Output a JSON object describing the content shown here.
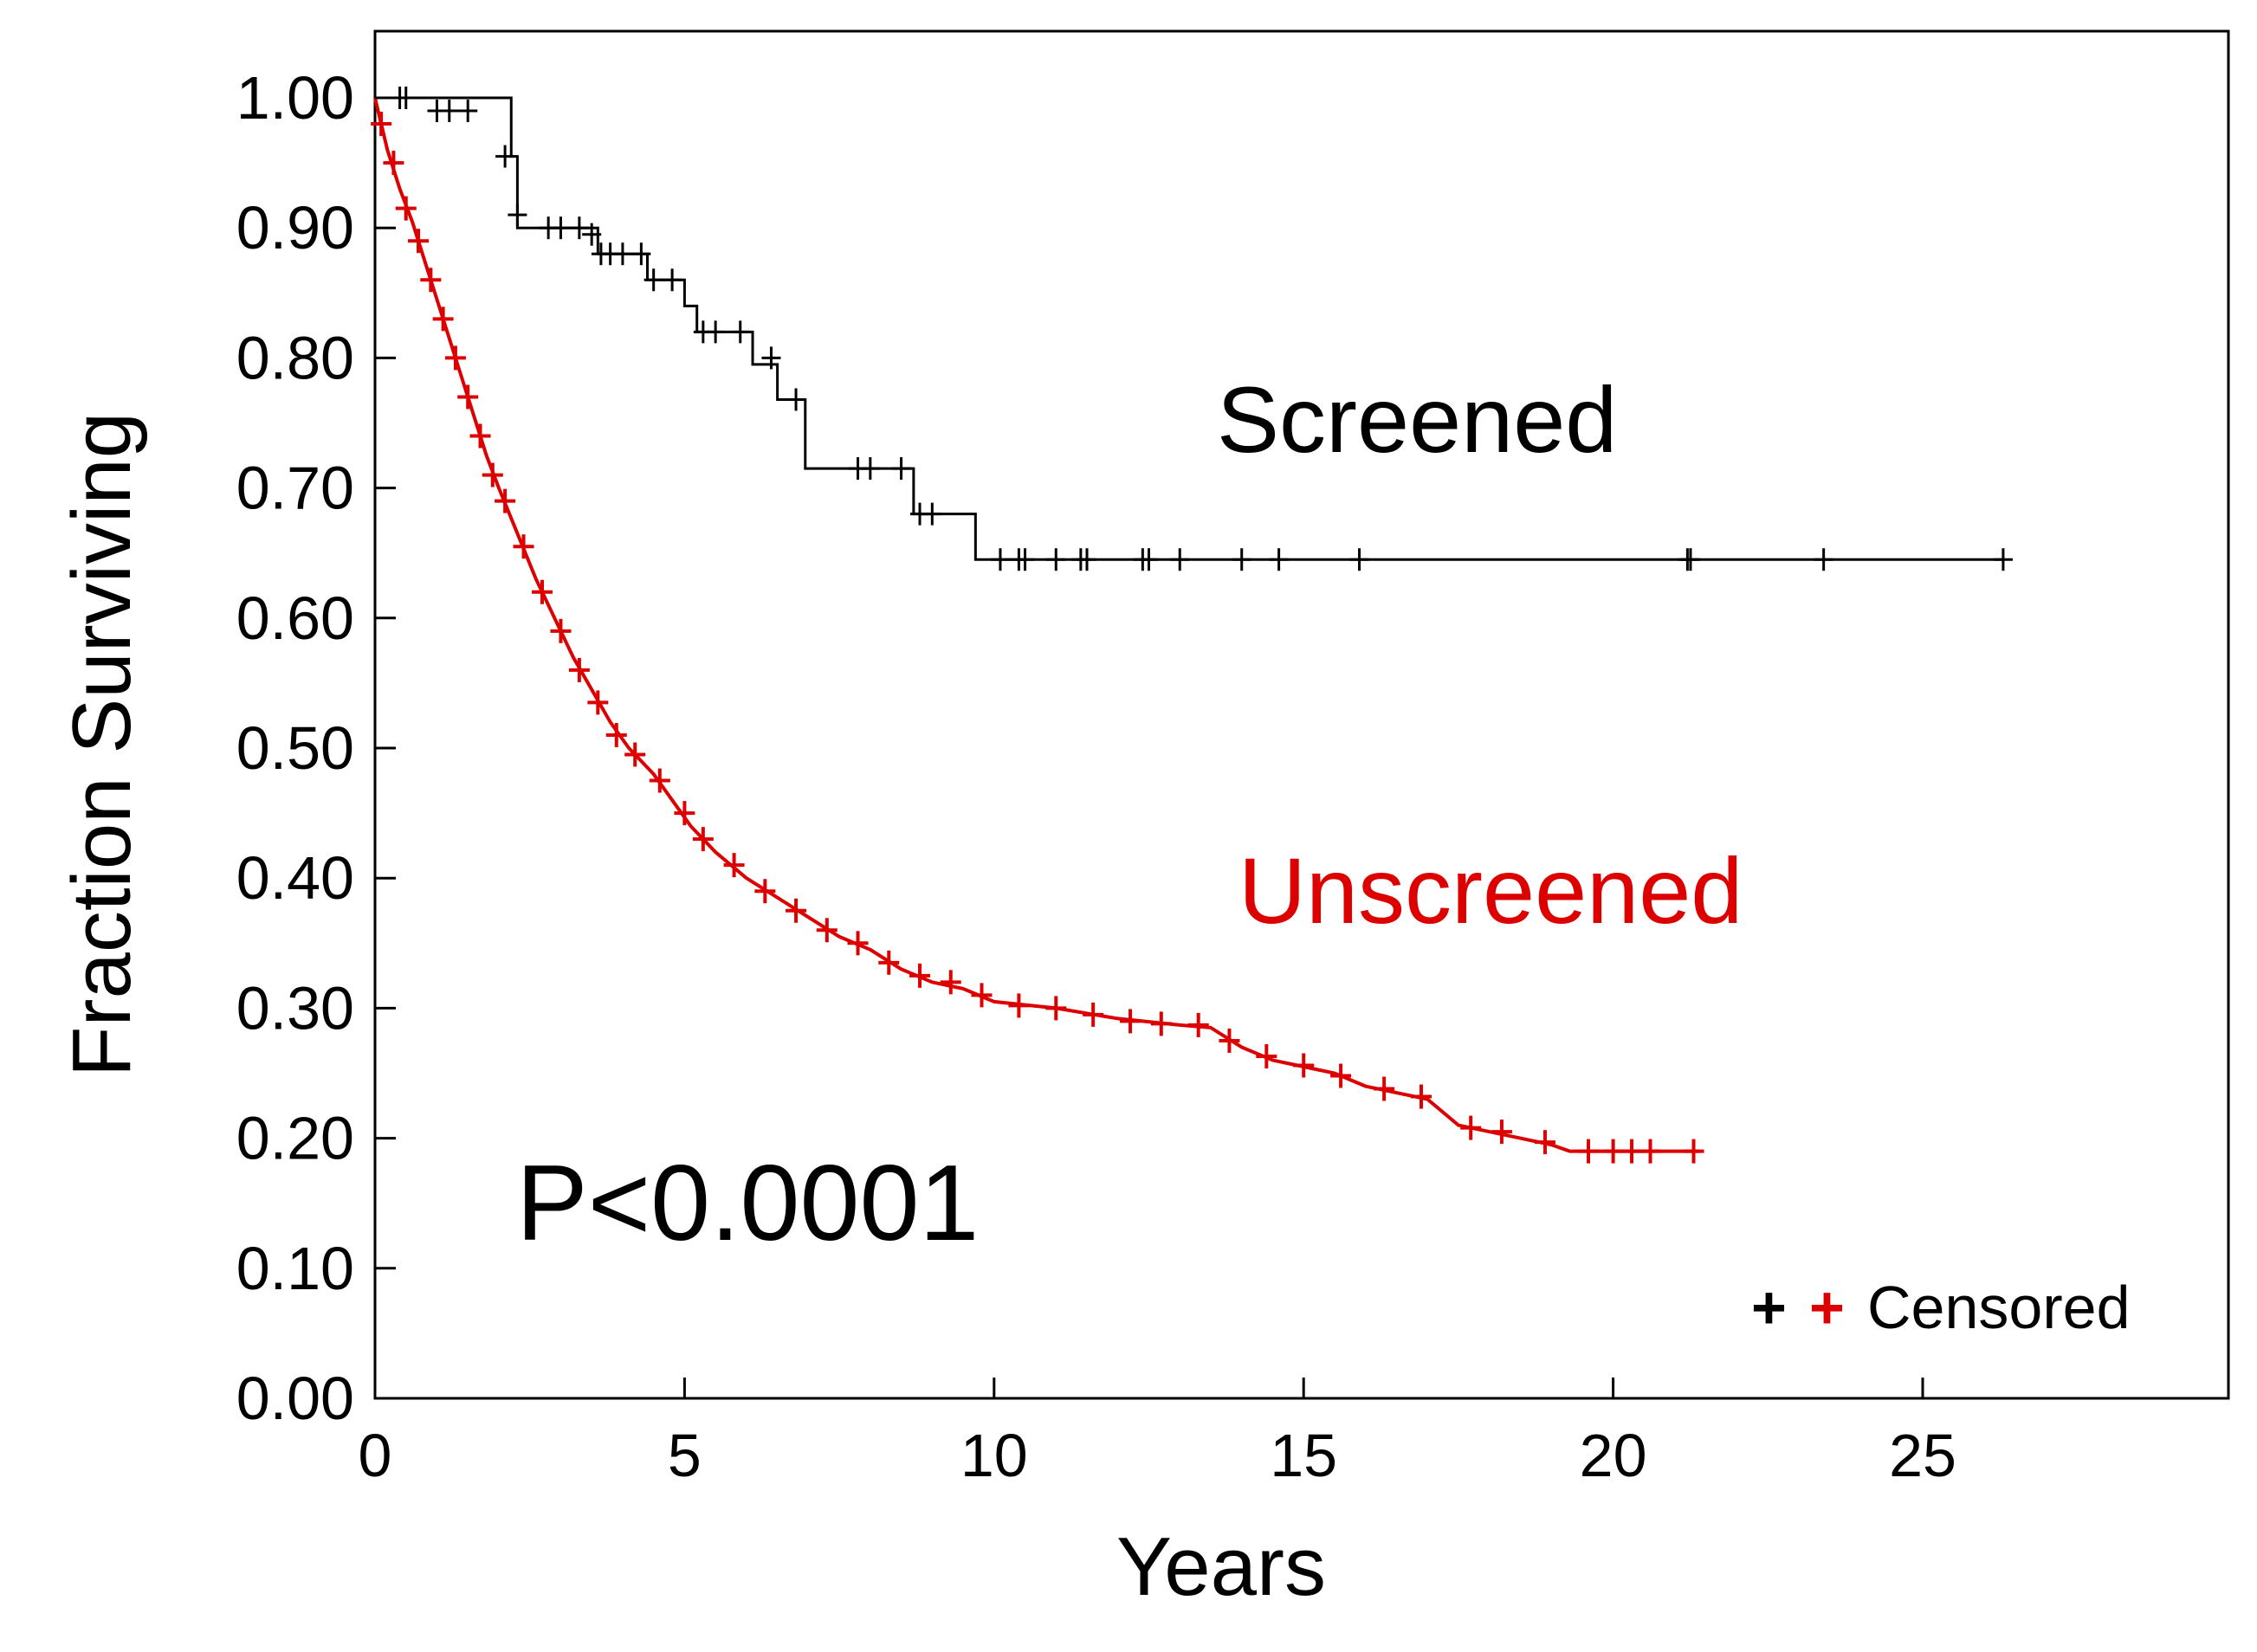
{
  "chart_data": {
    "type": "line",
    "subtype": "kaplan-meier",
    "xlabel": "Years",
    "ylabel": "Fraction Surviving",
    "xlim": [
      0,
      30
    ],
    "ylim": [
      0,
      1
    ],
    "x_ticks": [
      0,
      5,
      10,
      15,
      20,
      25
    ],
    "x_tick_labels": [
      "0",
      "5",
      "10",
      "15",
      "20",
      "25"
    ],
    "y_ticks": [
      0,
      0.1,
      0.2,
      0.3,
      0.4,
      0.5,
      0.6,
      0.7,
      0.8,
      0.9,
      1.0
    ],
    "y_tick_labels": [
      "0.00",
      "0.10",
      "0.20",
      "0.30",
      "0.40",
      "0.50",
      "0.60",
      "0.70",
      "0.80",
      "0.90",
      "1.00"
    ],
    "grid": false,
    "annotation": "P<0.0001",
    "legend": {
      "label": "Censored",
      "placement": "bottom-right",
      "symbol": "+"
    },
    "series": [
      {
        "name": "Screened",
        "color": "#000000",
        "step_points": [
          [
            0,
            1.0
          ],
          [
            2.2,
            1.0
          ],
          [
            2.2,
            0.955
          ],
          [
            2.3,
            0.955
          ],
          [
            2.3,
            0.9
          ],
          [
            3.6,
            0.9
          ],
          [
            3.6,
            0.88
          ],
          [
            4.4,
            0.88
          ],
          [
            4.4,
            0.86
          ],
          [
            5.0,
            0.86
          ],
          [
            5.0,
            0.84
          ],
          [
            5.2,
            0.84
          ],
          [
            5.2,
            0.82
          ],
          [
            6.1,
            0.82
          ],
          [
            6.1,
            0.795
          ],
          [
            6.5,
            0.795
          ],
          [
            6.5,
            0.768
          ],
          [
            6.95,
            0.768
          ],
          [
            6.95,
            0.715
          ],
          [
            8.7,
            0.715
          ],
          [
            8.7,
            0.68
          ],
          [
            9.7,
            0.68
          ],
          [
            9.7,
            0.645
          ],
          [
            26.3,
            0.645
          ]
        ],
        "censored": [
          [
            0.4,
            1.0
          ],
          [
            0.5,
            1.0
          ],
          [
            1.0,
            0.99
          ],
          [
            1.2,
            0.99
          ],
          [
            1.5,
            0.99
          ],
          [
            2.1,
            0.955
          ],
          [
            2.3,
            0.91
          ],
          [
            2.8,
            0.9
          ],
          [
            3.0,
            0.9
          ],
          [
            3.3,
            0.9
          ],
          [
            3.5,
            0.895
          ],
          [
            3.65,
            0.88
          ],
          [
            3.8,
            0.88
          ],
          [
            4.0,
            0.88
          ],
          [
            4.3,
            0.88
          ],
          [
            4.5,
            0.86
          ],
          [
            4.8,
            0.86
          ],
          [
            5.3,
            0.82
          ],
          [
            5.5,
            0.82
          ],
          [
            5.9,
            0.82
          ],
          [
            6.4,
            0.8
          ],
          [
            6.8,
            0.768
          ],
          [
            7.8,
            0.715
          ],
          [
            8.0,
            0.715
          ],
          [
            8.5,
            0.715
          ],
          [
            8.8,
            0.68
          ],
          [
            9.0,
            0.68
          ],
          [
            10.1,
            0.645
          ],
          [
            10.4,
            0.645
          ],
          [
            10.5,
            0.645
          ],
          [
            11.0,
            0.645
          ],
          [
            11.4,
            0.645
          ],
          [
            11.5,
            0.645
          ],
          [
            12.4,
            0.645
          ],
          [
            12.5,
            0.645
          ],
          [
            13.0,
            0.645
          ],
          [
            14.0,
            0.645
          ],
          [
            14.6,
            0.645
          ],
          [
            15.9,
            0.645
          ],
          [
            21.2,
            0.645
          ],
          [
            21.25,
            0.645
          ],
          [
            23.4,
            0.645
          ],
          [
            26.3,
            0.645
          ]
        ]
      },
      {
        "name": "Unscreened",
        "color": "#dd0000",
        "curve_points": [
          [
            0,
            1.0
          ],
          [
            0.2,
            0.96
          ],
          [
            0.4,
            0.93
          ],
          [
            0.6,
            0.905
          ],
          [
            0.8,
            0.875
          ],
          [
            1.0,
            0.845
          ],
          [
            1.2,
            0.815
          ],
          [
            1.4,
            0.785
          ],
          [
            1.6,
            0.755
          ],
          [
            1.8,
            0.725
          ],
          [
            2.0,
            0.7
          ],
          [
            2.3,
            0.665
          ],
          [
            2.6,
            0.63
          ],
          [
            2.9,
            0.6
          ],
          [
            3.2,
            0.57
          ],
          [
            3.5,
            0.545
          ],
          [
            3.8,
            0.52
          ],
          [
            4.1,
            0.5
          ],
          [
            4.5,
            0.48
          ],
          [
            4.8,
            0.46
          ],
          [
            5.1,
            0.44
          ],
          [
            5.5,
            0.42
          ],
          [
            6.0,
            0.4
          ],
          [
            6.5,
            0.385
          ],
          [
            7.0,
            0.37
          ],
          [
            7.5,
            0.355
          ],
          [
            8.0,
            0.345
          ],
          [
            8.5,
            0.33
          ],
          [
            9.0,
            0.32
          ],
          [
            9.5,
            0.315
          ],
          [
            10.0,
            0.305
          ],
          [
            11.0,
            0.3
          ],
          [
            12.0,
            0.292
          ],
          [
            13.0,
            0.287
          ],
          [
            13.5,
            0.285
          ],
          [
            14.0,
            0.27
          ],
          [
            14.5,
            0.26
          ],
          [
            15.0,
            0.255
          ],
          [
            15.5,
            0.25
          ],
          [
            16.0,
            0.24
          ],
          [
            16.5,
            0.235
          ],
          [
            17.0,
            0.23
          ],
          [
            17.5,
            0.21
          ],
          [
            18.0,
            0.205
          ],
          [
            18.5,
            0.2
          ],
          [
            19.0,
            0.195
          ],
          [
            19.3,
            0.19
          ],
          [
            21.4,
            0.19
          ]
        ],
        "censored": [
          [
            0.1,
            0.98
          ],
          [
            0.3,
            0.95
          ],
          [
            0.5,
            0.915
          ],
          [
            0.7,
            0.89
          ],
          [
            0.9,
            0.86
          ],
          [
            1.1,
            0.83
          ],
          [
            1.3,
            0.8
          ],
          [
            1.5,
            0.77
          ],
          [
            1.7,
            0.74
          ],
          [
            1.9,
            0.71
          ],
          [
            2.1,
            0.69
          ],
          [
            2.4,
            0.655
          ],
          [
            2.7,
            0.62
          ],
          [
            3.0,
            0.59
          ],
          [
            3.3,
            0.56
          ],
          [
            3.6,
            0.535
          ],
          [
            3.9,
            0.51
          ],
          [
            4.2,
            0.495
          ],
          [
            4.6,
            0.475
          ],
          [
            5.0,
            0.45
          ],
          [
            5.3,
            0.43
          ],
          [
            5.8,
            0.41
          ],
          [
            6.3,
            0.39
          ],
          [
            6.8,
            0.375
          ],
          [
            7.3,
            0.36
          ],
          [
            7.8,
            0.35
          ],
          [
            8.3,
            0.335
          ],
          [
            8.8,
            0.325
          ],
          [
            9.3,
            0.32
          ],
          [
            9.8,
            0.31
          ],
          [
            10.4,
            0.302
          ],
          [
            11.0,
            0.3
          ],
          [
            11.6,
            0.295
          ],
          [
            12.2,
            0.29
          ],
          [
            12.7,
            0.288
          ],
          [
            13.3,
            0.287
          ],
          [
            13.8,
            0.275
          ],
          [
            14.4,
            0.263
          ],
          [
            15.0,
            0.256
          ],
          [
            15.6,
            0.248
          ],
          [
            16.3,
            0.238
          ],
          [
            16.9,
            0.232
          ],
          [
            17.7,
            0.208
          ],
          [
            18.2,
            0.205
          ],
          [
            18.9,
            0.197
          ],
          [
            19.6,
            0.19
          ],
          [
            20.0,
            0.19
          ],
          [
            20.3,
            0.19
          ],
          [
            20.6,
            0.19
          ],
          [
            21.3,
            0.19
          ]
        ]
      }
    ]
  }
}
